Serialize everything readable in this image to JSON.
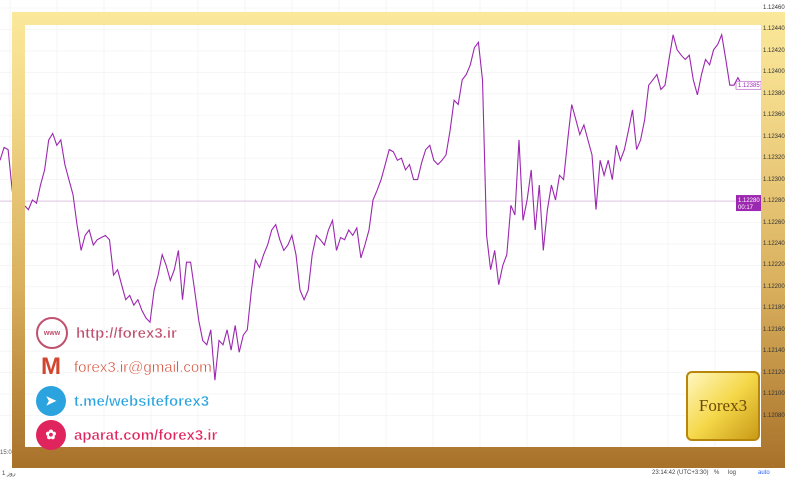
{
  "chart_data": {
    "type": "line",
    "ylim": [
      1.1206,
      1.1246
    ],
    "y_ticks": [
      "1.12460",
      "1.12440",
      "1.12420",
      "1.12400",
      "1.12380",
      "1.12360",
      "1.12340",
      "1.12320",
      "1.12300",
      "1.12280",
      "1.12260",
      "1.12240",
      "1.12220",
      "1.12200",
      "1.12180",
      "1.12160",
      "1.12140",
      "1.12120",
      "1.12100",
      "1.12080"
    ],
    "grid": true,
    "line_color": "#9c27b0",
    "last_price_label": "1.12385",
    "current_price": 1.1228,
    "current_price_label": "1.12280",
    "countdown_label": "00:17",
    "values": [
      1.12318,
      1.1233,
      1.12328,
      1.1229,
      1.12267,
      1.12281,
      1.12276,
      1.12272,
      1.12281,
      1.12278,
      1.12295,
      1.12309,
      1.12337,
      1.12343,
      1.12332,
      1.12337,
      1.12314,
      1.123,
      1.12286,
      1.12258,
      1.12234,
      1.12248,
      1.12253,
      1.12239,
      1.12244,
      1.12246,
      1.12248,
      1.12244,
      1.12211,
      1.12216,
      1.12202,
      1.12188,
      1.12192,
      1.12183,
      1.12188,
      1.12178,
      1.12171,
      1.12167,
      1.12197,
      1.12211,
      1.1223,
      1.1222,
      1.12206,
      1.12216,
      1.12234,
      1.12188,
      1.12223,
      1.12223,
      1.12197,
      1.12169,
      1.1215,
      1.12146,
      1.1216,
      1.12113,
      1.1215,
      1.12146,
      1.1216,
      1.12141,
      1.12164,
      1.12139,
      1.12155,
      1.1216,
      1.12197,
      1.12225,
      1.12218,
      1.1223,
      1.12239,
      1.12253,
      1.12258,
      1.12244,
      1.12234,
      1.12239,
      1.12248,
      1.1223,
      1.12197,
      1.12188,
      1.12197,
      1.1223,
      1.12248,
      1.12244,
      1.12239,
      1.12253,
      1.12262,
      1.12234,
      1.12246,
      1.12244,
      1.12253,
      1.12248,
      1.12255,
      1.12227,
      1.12239,
      1.12253,
      1.12281,
      1.1229,
      1.123,
      1.12314,
      1.12328,
      1.12326,
      1.12318,
      1.1232,
      1.12309,
      1.12314,
      1.123,
      1.123,
      1.12316,
      1.12328,
      1.12332,
      1.12318,
      1.12314,
      1.12318,
      1.12323,
      1.12346,
      1.12374,
      1.1237,
      1.12393,
      1.12398,
      1.12407,
      1.12423,
      1.12428,
      1.12393,
      1.12248,
      1.12216,
      1.12234,
      1.12202,
      1.1222,
      1.1223,
      1.12276,
      1.12267,
      1.12337,
      1.12262,
      1.12281,
      1.12309,
      1.12253,
      1.12295,
      1.12234,
      1.12272,
      1.12295,
      1.12281,
      1.12304,
      1.123,
      1.12337,
      1.1237,
      1.12356,
      1.12342,
      1.12351,
      1.12337,
      1.12323,
      1.12272,
      1.12318,
      1.12304,
      1.12318,
      1.123,
      1.12332,
      1.12318,
      1.12328,
      1.12346,
      1.12365,
      1.12328,
      1.12337,
      1.12356,
      1.12388,
      1.12393,
      1.12398,
      1.12384,
      1.12388,
      1.12412,
      1.12435,
      1.12421,
      1.12416,
      1.12412,
      1.12416,
      1.12393,
      1.12379,
      1.12398,
      1.12412,
      1.12407,
      1.12421,
      1.12426,
      1.12435,
      1.12412,
      1.12388,
      1.12388,
      1.12395,
      1.12388
    ]
  },
  "x_axis_first_label": "15:0",
  "status_bar": {
    "left": "1 روز",
    "time": "23:14:42 (UTC+3:30)",
    "percent": "%",
    "log": "log",
    "auto": "auto"
  },
  "contacts": [
    {
      "icon": "www-globe-icon",
      "text": "http://forex3.ir",
      "color": "#c0506e"
    },
    {
      "icon": "gmail-icon",
      "text": "forex3.ir@gmail.com",
      "color": "#d2452e"
    },
    {
      "icon": "telegram-icon",
      "text": "t.me/websiteforex3",
      "color": "#2aa3df"
    },
    {
      "icon": "aparat-icon",
      "text": "aparat.com/forex3.ir",
      "color": "#e0245e"
    }
  ],
  "logo": "Forex3",
  "colors": {
    "frame_top": "#fbe89a",
    "frame_bottom": "#a8712a",
    "line": "#9c27b0"
  }
}
